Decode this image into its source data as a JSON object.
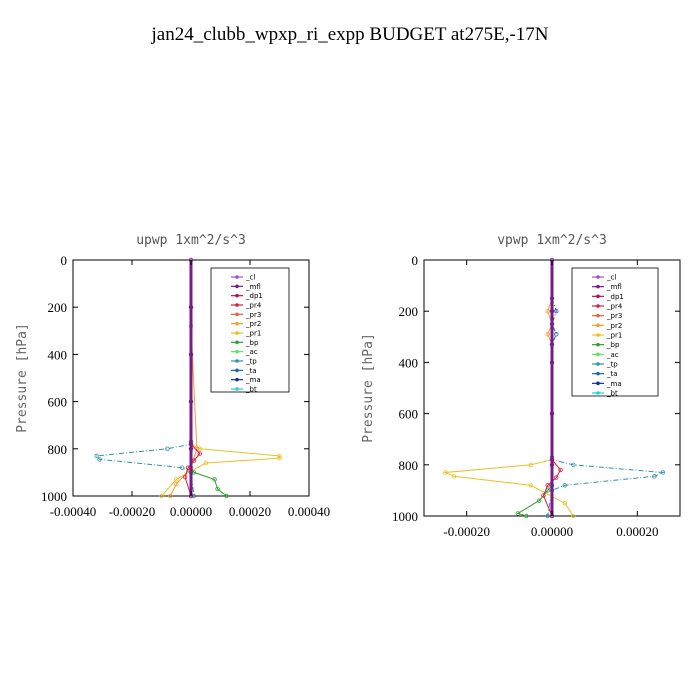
{
  "title": "jan24_clubb_wpxp_ri_expp  BUDGET at275E,-17N",
  "legend": [
    {
      "name": "_cl",
      "color": "#a050c8"
    },
    {
      "name": "_mfl",
      "color": "#7a1a8a"
    },
    {
      "name": "_dp1",
      "color": "#b01060"
    },
    {
      "name": "_pr4",
      "color": "#d02040"
    },
    {
      "name": "_pr3",
      "color": "#e86040"
    },
    {
      "name": "_pr2",
      "color": "#f0a030"
    },
    {
      "name": "_pr1",
      "color": "#e8c020"
    },
    {
      "name": "_bp",
      "color": "#30a030"
    },
    {
      "name": "_ac",
      "color": "#60e060"
    },
    {
      "name": "_tp",
      "color": "#3090b0"
    },
    {
      "name": "_ta",
      "color": "#2060c0"
    },
    {
      "name": "_ma",
      "color": "#1030a0"
    },
    {
      "name": "_bt",
      "color": "#20d0e0"
    }
  ],
  "chart_data": [
    {
      "type": "line",
      "title": "upwp   1xm^2/s^3",
      "ylabel": "Pressure [hPa]",
      "xlabel": "",
      "xlim": [
        -0.0004,
        0.0004
      ],
      "ylim": [
        1000,
        0
      ],
      "xticks": [
        "-0.00040",
        "-0.00020",
        "0.00000",
        "0.00020",
        "0.00040"
      ],
      "xtick_values": [
        -0.0004,
        -0.0002,
        0.0,
        0.0002,
        0.0004
      ],
      "yticks": [
        "0",
        "200",
        "400",
        "600",
        "800",
        "1000"
      ],
      "ytick_values": [
        0,
        200,
        400,
        600,
        800,
        1000
      ],
      "legend_position": "top-right",
      "series": [
        {
          "name": "_pr1",
          "x": [
            0,
            0,
            3e-05,
            0.0003,
            0.0003,
            5e-05,
            -5e-05,
            -0.0001
          ],
          "y": [
            770,
            780,
            800,
            830,
            840,
            860,
            930,
            1000
          ]
        },
        {
          "name": "_tp",
          "x": [
            0,
            0,
            -8e-05,
            -0.00032,
            -0.00031,
            -3e-05,
            0,
            1e-05
          ],
          "y": [
            770,
            780,
            800,
            830,
            845,
            880,
            900,
            1000
          ]
        },
        {
          "name": "_bp",
          "x": [
            0,
            1e-05,
            8e-05,
            9e-05,
            0.00012
          ],
          "y": [
            880,
            900,
            930,
            970,
            1000
          ]
        },
        {
          "name": "_pr2",
          "x": [
            0,
            0,
            2e-05,
            0,
            -5e-05,
            -7e-05
          ],
          "y": [
            200,
            280,
            800,
            880,
            950,
            1000
          ]
        },
        {
          "name": "_pr4",
          "x": [
            0,
            3e-05,
            1e-05,
            -1e-05,
            -2e-05,
            0
          ],
          "y": [
            780,
            820,
            850,
            880,
            920,
            1000
          ]
        },
        {
          "name": "_mfl",
          "x": [
            0,
            0,
            0,
            0,
            0,
            0
          ],
          "y": [
            0,
            200,
            400,
            600,
            800,
            1000
          ]
        }
      ]
    },
    {
      "type": "line",
      "title": "vpwp   1xm^2/s^3",
      "ylabel": "Pressure [hPa]",
      "xlabel": "",
      "xlim": [
        -0.0003,
        0.0003
      ],
      "ylim": [
        1000,
        0
      ],
      "xticks": [
        "-0.00020",
        "0.00000",
        "0.00020"
      ],
      "xtick_values": [
        -0.0002,
        0.0,
        0.0002
      ],
      "yticks": [
        "0",
        "200",
        "400",
        "600",
        "800",
        "1000"
      ],
      "ytick_values": [
        0,
        200,
        400,
        600,
        800,
        1000
      ],
      "legend_position": "top-right",
      "series": [
        {
          "name": "_pr1",
          "x": [
            0,
            0,
            -5e-05,
            -0.00025,
            -0.00023,
            -5e-05,
            3e-05,
            5e-05
          ],
          "y": [
            770,
            780,
            800,
            830,
            845,
            880,
            950,
            1000
          ]
        },
        {
          "name": "_tp",
          "x": [
            0,
            0,
            5e-05,
            0.00026,
            0.00024,
            3e-05,
            0,
            -1e-05
          ],
          "y": [
            770,
            780,
            800,
            830,
            845,
            880,
            900,
            1000
          ]
        },
        {
          "name": "_bp",
          "x": [
            0,
            -1e-05,
            -3e-05,
            -8e-05,
            -6e-05
          ],
          "y": [
            880,
            900,
            940,
            990,
            1000
          ]
        },
        {
          "name": "_pr2",
          "x": [
            0,
            -1e-05,
            0,
            -1e-05,
            0
          ],
          "y": [
            150,
            200,
            250,
            290,
            330
          ]
        },
        {
          "name": "_ta",
          "x": [
            0,
            1e-05,
            0,
            1e-05,
            0
          ],
          "y": [
            150,
            200,
            250,
            290,
            330
          ]
        },
        {
          "name": "_pr4",
          "x": [
            0,
            2e-05,
            1e-05,
            -1e-05,
            -2e-05,
            0
          ],
          "y": [
            780,
            820,
            850,
            880,
            920,
            1000
          ]
        },
        {
          "name": "_mfl",
          "x": [
            0,
            0,
            0,
            0,
            0,
            0
          ],
          "y": [
            0,
            200,
            400,
            600,
            800,
            1000
          ]
        }
      ]
    }
  ]
}
